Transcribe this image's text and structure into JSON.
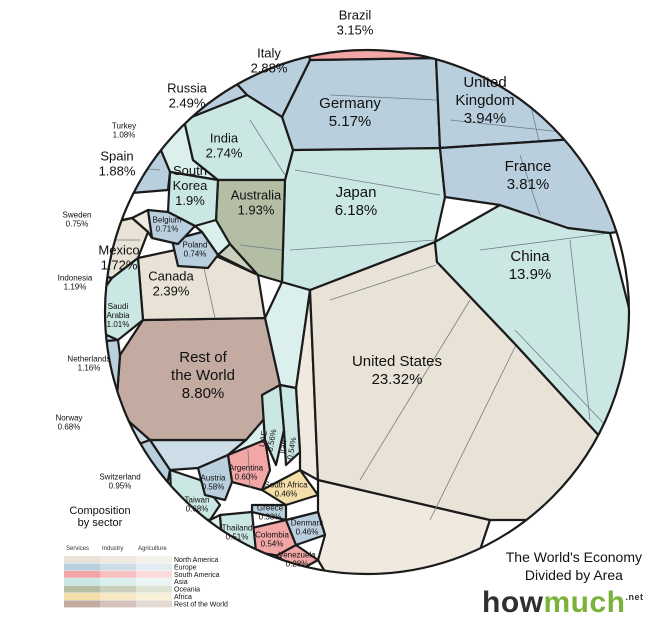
{
  "chart_data": {
    "type": "voronoi-treemap",
    "regions": [
      {
        "name": "United States",
        "value": "23.32%",
        "sector_region": "North America"
      },
      {
        "name": "China",
        "value": "13.9%",
        "sector_region": "Asia"
      },
      {
        "name": "Rest of the World",
        "value": "8.80%",
        "sector_region": "Rest of the World"
      },
      {
        "name": "Japan",
        "value": "6.18%",
        "sector_region": "Asia"
      },
      {
        "name": "Germany",
        "value": "5.17%",
        "sector_region": "Europe"
      },
      {
        "name": "United Kingdom",
        "value": "3.94%",
        "sector_region": "Europe"
      },
      {
        "name": "France",
        "value": "3.81%",
        "sector_region": "Europe"
      },
      {
        "name": "Brazil",
        "value": "3.15%",
        "sector_region": "South America"
      },
      {
        "name": "Italy",
        "value": "2.88%",
        "sector_region": "Europe"
      },
      {
        "name": "India",
        "value": "2.74%",
        "sector_region": "Asia"
      },
      {
        "name": "Russia",
        "value": "2.49%",
        "sector_region": "Europe"
      },
      {
        "name": "Canada",
        "value": "2.39%",
        "sector_region": "North America"
      },
      {
        "name": "Australia",
        "value": "1.93%",
        "sector_region": "Oceania"
      },
      {
        "name": "South Korea",
        "value": "1.9%",
        "sector_region": "Asia"
      },
      {
        "name": "Spain",
        "value": "1.88%",
        "sector_region": "Europe"
      },
      {
        "name": "Mexico",
        "value": "1.72%",
        "sector_region": "North America"
      },
      {
        "name": "Indonesia",
        "value": "1.19%",
        "sector_region": "Asia"
      },
      {
        "name": "Netherlands",
        "value": "1.16%",
        "sector_region": "Europe"
      },
      {
        "name": "Turkey",
        "value": "1.08%",
        "sector_region": "Asia"
      },
      {
        "name": "Saudi Arabia",
        "value": "1.01%",
        "sector_region": "Asia"
      },
      {
        "name": "Switzerland",
        "value": "0.95%",
        "sector_region": "Europe"
      },
      {
        "name": "Sweden",
        "value": "0.75%",
        "sector_region": "Europe"
      },
      {
        "name": "Poland",
        "value": "0.74%",
        "sector_region": "Europe"
      },
      {
        "name": "Belgium",
        "value": "0.71%",
        "sector_region": "Europe"
      },
      {
        "name": "Norway",
        "value": "0.68%",
        "sector_region": "Europe"
      },
      {
        "name": "Taiwan",
        "value": "0.68%",
        "sector_region": "Asia"
      },
      {
        "name": "Argentina",
        "value": "0.60%",
        "sector_region": "South America"
      },
      {
        "name": "Austria",
        "value": "0.58%",
        "sector_region": "Europe"
      },
      {
        "name": "UAE",
        "value": "0.56%",
        "sector_region": "Asia"
      },
      {
        "name": "Iran",
        "value": "0.54%",
        "sector_region": "Asia"
      },
      {
        "name": "Colombia",
        "value": "0.54%",
        "sector_region": "South America"
      },
      {
        "name": "Thailand",
        "value": "0.51%",
        "sector_region": "Asia"
      },
      {
        "name": "Denmark",
        "value": "0.46%",
        "sector_region": "Europe"
      },
      {
        "name": "South Africa",
        "value": "0.46%",
        "sector_region": "Africa"
      },
      {
        "name": "Greece",
        "value": "0.33%",
        "sector_region": "Europe"
      },
      {
        "name": "Venezuela",
        "value": "0.28%",
        "sector_region": "South America"
      }
    ],
    "legend": {
      "title_lines": [
        "Composition",
        "by sector"
      ],
      "columns": [
        "Services",
        "Industry",
        "Agriculture"
      ],
      "rows": [
        "North America",
        "Europe",
        "South America",
        "Asia",
        "Oceania",
        "Africa",
        "Rest of the World"
      ]
    },
    "colors": {
      "North America": "#e9e2d6",
      "Europe": "#b9cfde",
      "South America": "#f2a6a6",
      "Asia": "#cbe7e3",
      "Oceania": "#b3bea4",
      "Africa": "#f4dfaa",
      "Rest of the World": "#c4aba2"
    },
    "legend_shades": {
      "North America": [
        "#e9e2d6",
        "#efe9e0",
        "#f5f2ec"
      ],
      "Europe": [
        "#b9cfde",
        "#cddde8",
        "#e2ecf2"
      ],
      "South America": [
        "#f2a6a6",
        "#f6c0c0",
        "#fadada"
      ],
      "Asia": [
        "#cbe7e3",
        "#dbefec",
        "#ebf6f4"
      ],
      "Oceania": [
        "#b3bea4",
        "#c9d1be",
        "#dde2d5"
      ],
      "Africa": [
        "#f4dfaa",
        "#f7e8c3",
        "#faf1db"
      ],
      "Rest of the World": [
        "#c4aba2",
        "#d5c2bb",
        "#e5d9d4"
      ]
    }
  },
  "branding": {
    "title_line1": "The World's Economy",
    "title_line2": "Divided by Area",
    "logo_part1": "how",
    "logo_part2": "much",
    "logo_suffix": ".net"
  }
}
